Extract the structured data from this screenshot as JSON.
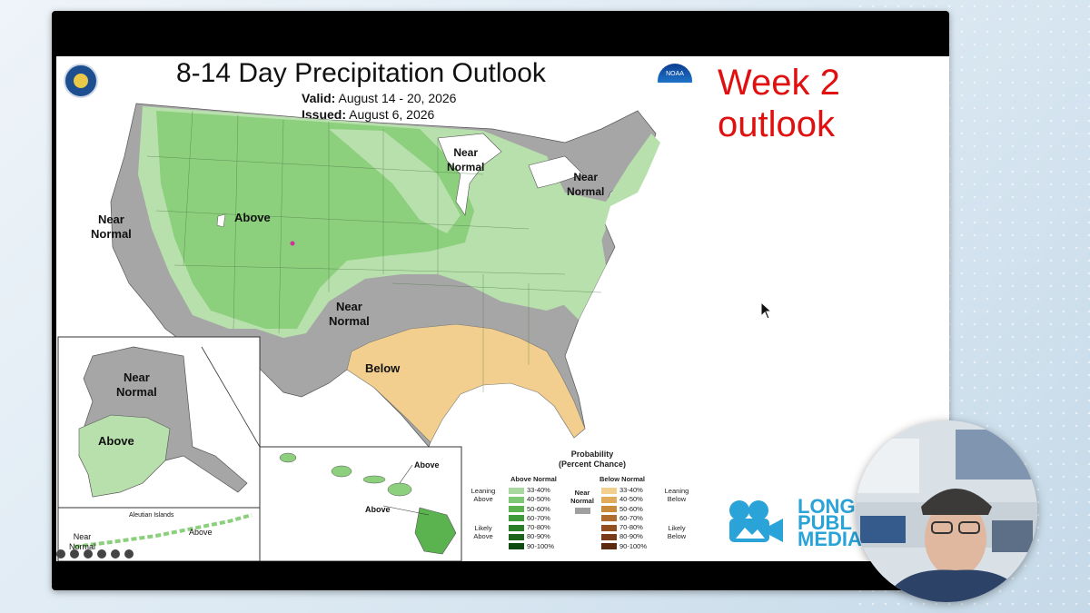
{
  "slide": {
    "title": "8-14 Day Precipitation Outlook",
    "valid_label": "Valid:",
    "valid_value": "August 14 - 20, 2026",
    "issued_label": "Issued:",
    "issued_value": "August 6, 2026",
    "callout_line1": "Week 2",
    "callout_line2": "outlook"
  },
  "map_labels": {
    "west_near_normal_1": "Near",
    "west_near_normal_2": "Normal",
    "above": "Above",
    "glakes_near_1": "Near",
    "glakes_near_2": "Normal",
    "ne_near_1": "Near",
    "ne_near_2": "Normal",
    "south_near_1": "Near",
    "south_near_2": "Normal",
    "below": "Below",
    "ak_near_1": "Near",
    "ak_near_2": "Normal",
    "ak_above": "Above",
    "aleutian_title": "Aleutian Islands",
    "aleutian_above": "Above",
    "aleutian_near_1": "Near",
    "aleutian_near_2": "Normal",
    "hi_above_1": "Above",
    "hi_above_2": "Above"
  },
  "legend": {
    "title_1": "Probability",
    "title_2": "(Percent Chance)",
    "above_header": "Above Normal",
    "below_header": "Below Normal",
    "near_1": "Near",
    "near_2": "Normal",
    "leaning_above_1": "Leaning",
    "leaning_above_2": "Above",
    "likely_above_1": "Likely",
    "likely_above_2": "Above",
    "leaning_below_1": "Leaning",
    "leaning_below_2": "Below",
    "likely_below_1": "Likely",
    "likely_below_2": "Below",
    "above_ranges": [
      "33-40%",
      "40-50%",
      "50-60%",
      "60-70%",
      "70-80%",
      "80-90%",
      "90-100%"
    ],
    "below_ranges": [
      "33-40%",
      "40-50%",
      "50-60%",
      "60-70%",
      "70-80%",
      "80-90%",
      "90-100%"
    ],
    "above_colors": [
      "#a8d8a0",
      "#7cc873",
      "#5bb34f",
      "#3f9a39",
      "#2a7e27",
      "#1c641b",
      "#0f4a10"
    ],
    "below_colors": [
      "#f2cf8e",
      "#e0ab5a",
      "#c98a3c",
      "#b06c2c",
      "#934f20",
      "#7a3b18",
      "#5b2a10"
    ],
    "near_color": "#a0a0a0"
  },
  "map_colors": {
    "near_normal": "#a6a6a6",
    "above_33": "#b8e0ad",
    "above_40": "#8ccf7d",
    "above_50": "#6fbd5e",
    "below_33": "#f2cf8e",
    "water": "#ffffff"
  },
  "branding": {
    "logo_line1": "LONG",
    "logo_line2": "PUBL",
    "logo_line3": "MEDIA",
    "noaa_mark": "NOAA"
  }
}
